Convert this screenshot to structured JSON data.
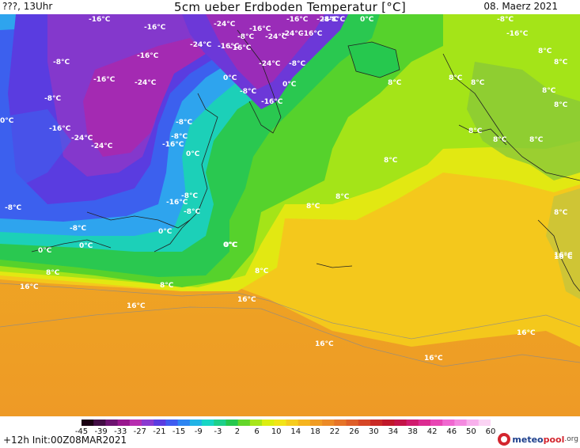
{
  "header": {
    "left": "???, 13Uhr",
    "title": "5cm ueber Erdboden Temperatur [°C]",
    "date": "08. Maerz 2021"
  },
  "map": {
    "labels": [
      "-16°C",
      "-16°C",
      "-24°C",
      "-16°C",
      "-8°C",
      "-16°C",
      "-24°C",
      "-16°C",
      "-8°C",
      "-16°C",
      "-24°C",
      "-16°C",
      "-8°C",
      "0°C",
      "-24°C",
      "-8°C",
      "-16°C",
      "-24°C",
      "-8°C",
      "0°C",
      "-8°C",
      "0°C",
      "-8°C",
      "-16°C",
      "-16°C",
      "-24°C",
      "-8°C",
      "-24°C",
      "-16°C",
      "-16°C",
      "-8°C",
      "-8°C",
      "0°C",
      "-24°C",
      "-16°C",
      "-24°C",
      "-8°C",
      "-16°C",
      "-8°C",
      "0°C",
      "8°C",
      "8°C",
      "8°C",
      "8°C",
      "8°C",
      "8°C",
      "8°C",
      "8°C",
      "-8°C",
      "-8°C",
      "0°C",
      "0°C",
      "0°C",
      "0°C",
      "0°C",
      "8°C",
      "8°C",
      "8°C",
      "8°C",
      "8°C",
      "16°C",
      "16°C",
      "16°C",
      "16°C",
      "16°C",
      "16°C",
      "16°C",
      "16°C",
      "8°C",
      "8°C",
      "8°C",
      "8°C"
    ]
  },
  "colorbar": {
    "ticks": [
      "-45",
      "-39",
      "-33",
      "-27",
      "-21",
      "-15",
      "-9",
      "-3",
      "2",
      "6",
      "10",
      "14",
      "18",
      "22",
      "26",
      "30",
      "34",
      "38",
      "42",
      "46",
      "50",
      "60"
    ],
    "colors": [
      "#1a0012",
      "#420d44",
      "#6d1370",
      "#98188e",
      "#b72eb0",
      "#8a3ad0",
      "#5a3ce0",
      "#3f5cf0",
      "#2e86f2",
      "#22b4e6",
      "#17d6c4",
      "#1ed08a",
      "#26c84e",
      "#63d62a",
      "#a8e61a",
      "#dcee10",
      "#f2e418",
      "#f6cc1e",
      "#f6b41e",
      "#f09c24",
      "#ec8a26",
      "#e67428",
      "#de5e28",
      "#d64626",
      "#c92a26",
      "#c0182a",
      "#c41448",
      "#d01c6e",
      "#dc2c92",
      "#e846b4",
      "#f068d0",
      "#f48ae0",
      "#f8b0ec",
      "#fbd4f4"
    ]
  },
  "footer": {
    "init": "+12h Init:00Z08MAR2021",
    "logo_meteo": "meteo",
    "logo_pool": "pool",
    "logo_tld": ".org"
  }
}
